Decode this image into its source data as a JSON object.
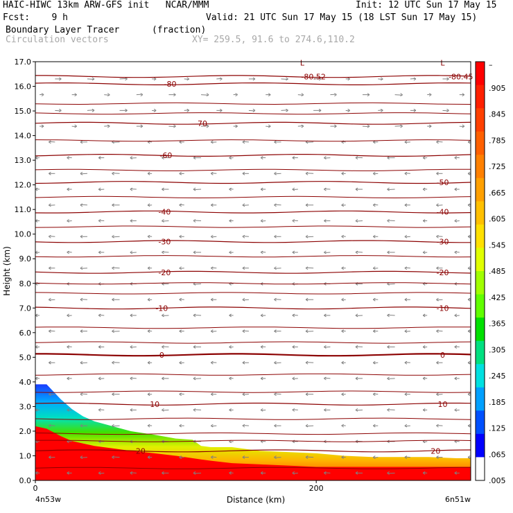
{
  "header": {
    "line1_left": "HAIC-HIWC 13km ARW-GFS init   NCAR/MMM",
    "line1_right": "Init: 12 UTC Sun 17 May 15",
    "line2_left": "Fcst:    9 h",
    "line2_right": "Valid: 21 UTC Sun 17 May 15 (18 LST Sun 17 May 15)",
    "line3_left": "Boundary Layer Tracer",
    "line3_mid": "(fraction)",
    "line4_left": "Circulation vectors",
    "line4_right": "XY= 259.5, 91.6 to 274.6,110.2"
  },
  "chart_data": {
    "type": "heatmap",
    "title": "Boundary Layer Tracer",
    "units": "(fraction)",
    "xlabel": "Distance (km)",
    "ylabel": "Height (km)",
    "xlim": [
      0,
      310
    ],
    "ylim": [
      0,
      17
    ],
    "x_ticks": [
      {
        "value": 0,
        "label": "0"
      },
      {
        "value": 200,
        "label": "200"
      }
    ],
    "x_endpoints": {
      "left": "4n53w",
      "right": "6n51w"
    },
    "y_ticks": [
      "0.0",
      "1.0",
      "2.0",
      "3.0",
      "4.0",
      "5.0",
      "6.0",
      "7.0",
      "8.0",
      "9.0",
      "10.0",
      "11.0",
      "12.0",
      "13.0",
      "14.0",
      "15.0",
      "16.0",
      "17.0"
    ],
    "tracer_top_profile": {
      "x_km": [
        0,
        8,
        18,
        26,
        34,
        42,
        55,
        68,
        85,
        100,
        112,
        118,
        125,
        140,
        160,
        180,
        200,
        220,
        240,
        260,
        280,
        300,
        310
      ],
      "z_top_km": [
        3.9,
        3.9,
        3.3,
        2.9,
        2.6,
        2.4,
        2.2,
        2.0,
        1.85,
        1.7,
        1.65,
        1.4,
        1.35,
        1.35,
        1.2,
        1.15,
        1.1,
        1.0,
        0.95,
        0.95,
        0.95,
        0.9,
        0.9
      ],
      "z_red_top_km": [
        2.2,
        2.1,
        1.8,
        1.6,
        1.5,
        1.4,
        1.3,
        1.2,
        1.1,
        1.0,
        0.9,
        0.85,
        0.8,
        0.7,
        0.65,
        0.6,
        0.55,
        0.55,
        0.55,
        0.55,
        0.55,
        0.55,
        0.55
      ]
    },
    "isotherms": [
      {
        "label": "20",
        "z_km": 1.2
      },
      {
        "label": "10",
        "z_km": 3.1
      },
      {
        "label": "0",
        "z_km": 5.1
      },
      {
        "label": "-10",
        "z_km": 7.0
      },
      {
        "label": "-20",
        "z_km": 8.45
      },
      {
        "label": "-30",
        "z_km": 9.7
      },
      {
        "label": "-40",
        "z_km": 10.9
      },
      {
        "label": "-50",
        "z_km": 12.1
      },
      {
        "label": "-60",
        "z_km": 13.2
      },
      {
        "label": "-70",
        "z_km": 14.5
      },
      {
        "label": "-80",
        "z_km": 16.1
      },
      {
        "label": "-80.52",
        "z_km": 16.4
      },
      {
        "label": "-80.45",
        "z_km": 16.4
      }
    ],
    "extra_isotherm_levels_km": [
      0.5,
      1.6,
      1.9,
      2.5,
      3.6,
      4.3,
      5.6,
      6.2,
      7.6,
      8.0,
      9.1,
      10.3,
      11.5,
      12.6,
      13.8,
      14.9,
      15.3
    ],
    "lows": [
      "L",
      "L"
    ],
    "colorbar": {
      "labels": [
        "–",
        ".905",
        ".845",
        ".785",
        ".725",
        ".665",
        ".605",
        ".545",
        ".485",
        ".425",
        ".365",
        ".305",
        ".245",
        ".185",
        ".125",
        ".065",
        ".005"
      ],
      "colors": [
        "#ff0000",
        "#ff2000",
        "#ff4000",
        "#ff6000",
        "#ff8000",
        "#ffa000",
        "#ffc000",
        "#ffe000",
        "#e0ff00",
        "#a0ff00",
        "#60ff00",
        "#00e000",
        "#00e080",
        "#00e0e0",
        "#00a0ff",
        "#0050ff",
        "#0000ff",
        "#ffffff"
      ]
    }
  }
}
